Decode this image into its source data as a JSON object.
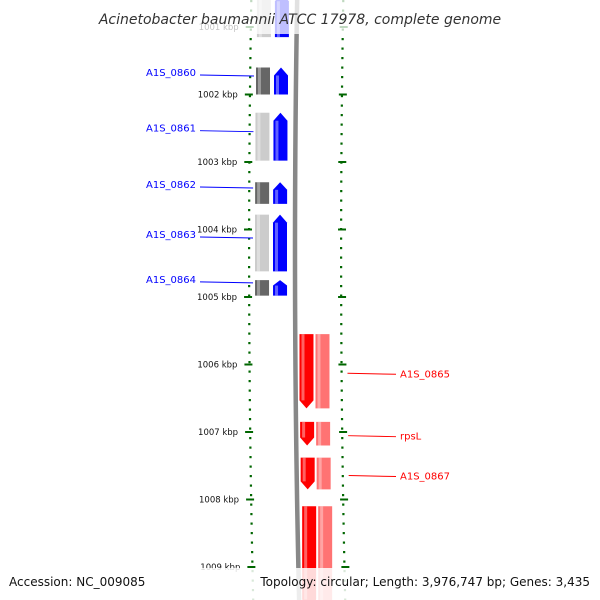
{
  "title": "Acinetobacter baumannii ATCC 17978, complete genome",
  "accession": "Accession: NC_009085",
  "summary": "Topology: circular; Length: 3,976,747 bp; Genes: 3,435",
  "colors": {
    "forward": "#0000ff",
    "reverse": "#ff0000",
    "backbone": "#888888",
    "ticks": "#006600",
    "feature_dark": "#666666",
    "feature_light": "#cccccc"
  },
  "ticks": [
    {
      "label": "1001 kbp",
      "kbp": 1001
    },
    {
      "label": "1002 kbp",
      "kbp": 1002
    },
    {
      "label": "1003 kbp",
      "kbp": 1003
    },
    {
      "label": "1004 kbp",
      "kbp": 1004
    },
    {
      "label": "1005 kbp",
      "kbp": 1005
    },
    {
      "label": "1006 kbp",
      "kbp": 1006
    },
    {
      "label": "1007 kbp",
      "kbp": 1007
    },
    {
      "label": "1008 kbp",
      "kbp": 1008
    },
    {
      "label": "1009 kbp",
      "kbp": 1009
    }
  ],
  "genes": [
    {
      "label": "",
      "strand": "forward",
      "start_kbp": 1000.5,
      "end_kbp": 1001.15
    },
    {
      "label": "A1S_0860",
      "strand": "forward",
      "start_kbp": 1001.6,
      "end_kbp": 1002.0
    },
    {
      "label": "A1S_0861",
      "strand": "forward",
      "start_kbp": 1002.27,
      "end_kbp": 1002.98
    },
    {
      "label": "A1S_0862",
      "strand": "forward",
      "start_kbp": 1003.3,
      "end_kbp": 1003.62
    },
    {
      "label": "A1S_0863",
      "strand": "forward",
      "start_kbp": 1003.78,
      "end_kbp": 1004.62
    },
    {
      "label": "A1S_0864",
      "strand": "forward",
      "start_kbp": 1004.75,
      "end_kbp": 1004.98
    },
    {
      "label": "A1S_0865",
      "strand": "reverse",
      "start_kbp": 1005.55,
      "end_kbp": 1006.65
    },
    {
      "label": "rpsL",
      "strand": "reverse",
      "start_kbp": 1006.85,
      "end_kbp": 1007.2
    },
    {
      "label": "A1S_0867",
      "strand": "reverse",
      "start_kbp": 1007.38,
      "end_kbp": 1007.85
    },
    {
      "label": "",
      "strand": "reverse",
      "start_kbp": 1008.1,
      "end_kbp": 1009.6
    }
  ]
}
